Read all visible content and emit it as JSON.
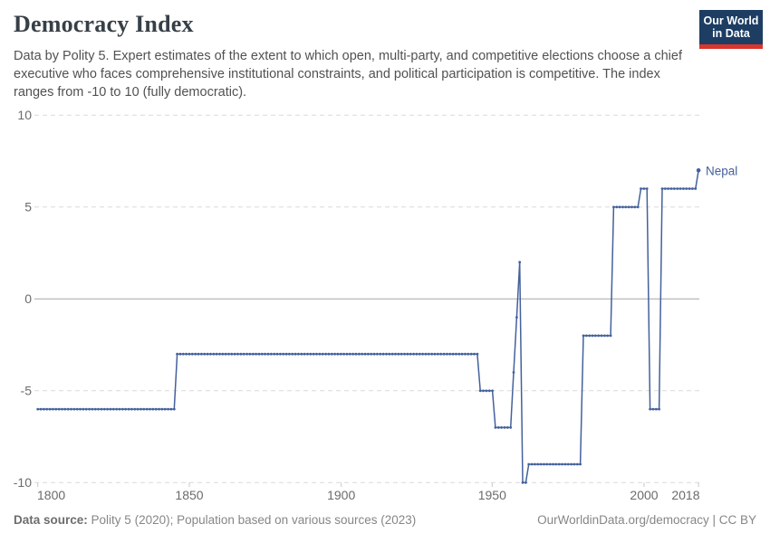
{
  "header": {
    "title": "Democracy Index",
    "subtitle": "Data by Polity 5. Expert estimates of the extent to which open, multi-party, and competitive elections choose a chief executive who faces comprehensive institutional constraints, and political participation is competitive. The index ranges from -10 to 10 (fully democratic).",
    "logo_line1": "Our World",
    "logo_line2": "in Data",
    "logo_bg_color": "#1d3d63",
    "logo_bar_color": "#d8352c"
  },
  "chart_data": {
    "type": "line",
    "title": "Democracy Index",
    "entity_label": "Nepal",
    "xlabel": "",
    "ylabel": "",
    "xlim": [
      1800,
      2018
    ],
    "ylim": [
      -10,
      10
    ],
    "x_tick_labels": [
      "1800",
      "1850",
      "1900",
      "1950",
      "2000",
      "2018"
    ],
    "y_tick_labels": [
      "10",
      "5",
      "0",
      "-5",
      "-10"
    ],
    "grid": "horizontal dashed gridlines, solid line at 0",
    "legend_position": "end-of-line label",
    "series": [
      {
        "name": "Nepal",
        "color": "#44619c",
        "marker": "dot-per-year",
        "segments": [
          {
            "from": 1800,
            "to": 1845,
            "value": -6
          },
          {
            "from": 1846,
            "to": 1945,
            "value": -3
          },
          {
            "from": 1946,
            "to": 1950,
            "value": -5
          },
          {
            "from": 1951,
            "to": 1956,
            "value": -7
          },
          {
            "from": 1957,
            "to": 1957,
            "value": -4
          },
          {
            "from": 1958,
            "to": 1958,
            "value": -1
          },
          {
            "from": 1959,
            "to": 1959,
            "value": 2
          },
          {
            "from": 1960,
            "to": 1961,
            "value": -10
          },
          {
            "from": 1962,
            "to": 1979,
            "value": -9
          },
          {
            "from": 1980,
            "to": 1989,
            "value": -2
          },
          {
            "from": 1990,
            "to": 1998,
            "value": 5
          },
          {
            "from": 1999,
            "to": 2001,
            "value": 6
          },
          {
            "from": 2002,
            "to": 2005,
            "value": -6
          },
          {
            "from": 2006,
            "to": 2017,
            "value": 6
          },
          {
            "from": 2018,
            "to": 2018,
            "value": 7
          }
        ]
      }
    ]
  },
  "footer": {
    "source_label": "Data source:",
    "source_text": "Polity 5 (2020); Population based on various sources (2023)",
    "credit_text": "OurWorldinData.org/democracy | CC BY"
  }
}
